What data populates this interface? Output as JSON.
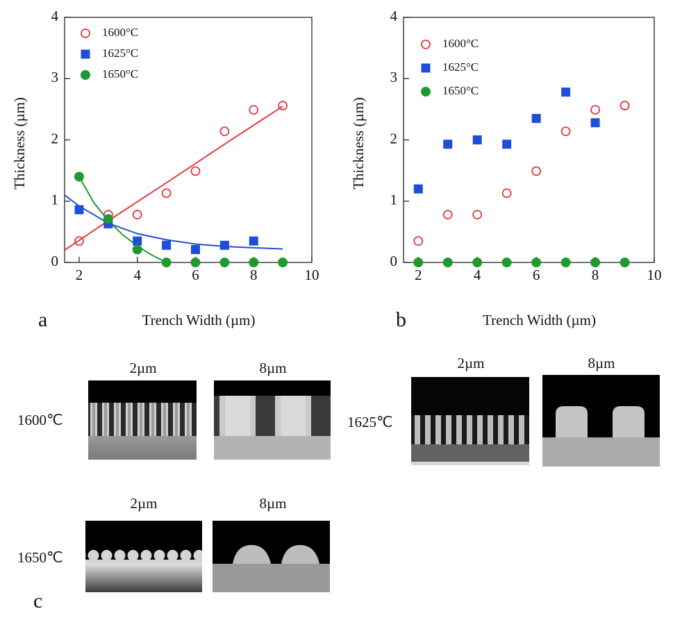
{
  "chart_data": [
    {
      "type": "scatter",
      "panel": "a",
      "xlabel": "Trench Width (µm)",
      "ylabel": "Thickness (µm)",
      "xlim": [
        1.5,
        10
      ],
      "ylim": [
        0,
        4
      ],
      "xticks": [
        2,
        4,
        6,
        8,
        10
      ],
      "yticks": [
        0,
        1,
        2,
        3,
        4
      ],
      "series": [
        {
          "name": "1600°C",
          "color": "#e8383d",
          "marker": "open-circle",
          "x": [
            2,
            3,
            4,
            5,
            6,
            7,
            8,
            9
          ],
          "values": [
            0.35,
            0.78,
            0.78,
            1.13,
            1.49,
            2.14,
            2.49,
            2.56
          ],
          "fit": {
            "x": [
              1.5,
              3,
              5,
              7,
              9
            ],
            "values": [
              0.2,
              0.68,
              1.3,
              1.93,
              2.55
            ]
          }
        },
        {
          "name": "1625°C",
          "color": "#1f4fd8",
          "marker": "square",
          "x": [
            2,
            3,
            4,
            5,
            6,
            7,
            8
          ],
          "values": [
            0.86,
            0.63,
            0.35,
            0.28,
            0.21,
            0.28,
            0.35
          ],
          "fit": {
            "x": [
              1.5,
              2,
              3,
              4,
              5,
              6,
              7,
              8,
              9
            ],
            "values": [
              1.1,
              0.92,
              0.64,
              0.47,
              0.37,
              0.3,
              0.26,
              0.24,
              0.22
            ]
          }
        },
        {
          "name": "1650°C",
          "color": "#1e9a2e",
          "marker": "circle",
          "x": [
            2,
            3,
            4,
            5,
            6,
            7,
            8,
            9
          ],
          "values": [
            1.4,
            0.71,
            0.21,
            0,
            0,
            0,
            0,
            0
          ],
          "fit": {
            "x": [
              2,
              2.5,
              3,
              3.5,
              4,
              4.5,
              5
            ],
            "values": [
              1.4,
              0.98,
              0.68,
              0.45,
              0.27,
              0.12,
              0
            ]
          }
        }
      ]
    },
    {
      "type": "scatter",
      "panel": "b",
      "xlabel": "Trench Width (µm)",
      "ylabel": "Thickness (µm)",
      "xlim": [
        1.5,
        10
      ],
      "ylim": [
        0,
        4
      ],
      "xticks": [
        2,
        4,
        6,
        8,
        10
      ],
      "yticks": [
        0,
        1,
        2,
        3,
        4
      ],
      "series": [
        {
          "name": "1600°C",
          "color": "#e8383d",
          "marker": "open-circle",
          "x": [
            2,
            3,
            4,
            5,
            6,
            7,
            8,
            9
          ],
          "values": [
            0.35,
            0.78,
            0.78,
            1.13,
            1.49,
            2.14,
            2.49,
            2.56
          ]
        },
        {
          "name": "1625°C",
          "color": "#1f4fd8",
          "marker": "square",
          "x": [
            2,
            3,
            4,
            5,
            6,
            7,
            8
          ],
          "values": [
            1.2,
            1.93,
            2.0,
            1.93,
            2.35,
            2.78,
            2.28
          ]
        },
        {
          "name": "1650°C",
          "color": "#1e9a2e",
          "marker": "circle",
          "x": [
            2,
            3,
            4,
            5,
            6,
            7,
            8,
            9
          ],
          "values": [
            0,
            0,
            0,
            0,
            0,
            0,
            0,
            0
          ]
        }
      ]
    }
  ],
  "sem_figure": {
    "label": "c",
    "groups": [
      {
        "temperature": "1600℃",
        "widths": [
          "2µm",
          "8µm"
        ]
      },
      {
        "temperature": "1625℃",
        "widths": [
          "2µm",
          "8µm"
        ]
      },
      {
        "temperature": "1650℃",
        "widths": [
          "2µm",
          "8µm"
        ]
      }
    ]
  }
}
